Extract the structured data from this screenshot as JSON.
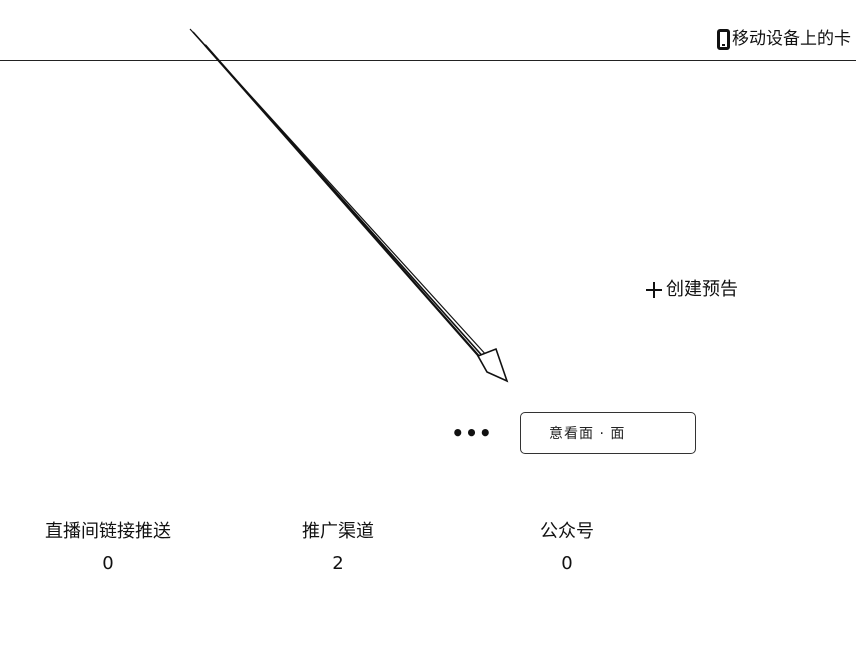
{
  "header": {
    "device_label": "移动设备上的卡"
  },
  "actions": {
    "create_preview_label": "创建预告",
    "more_label": "•••",
    "outlined_button_label": "意看面 · 面"
  },
  "stats": [
    {
      "label": "直播间链接推送",
      "value": "0"
    },
    {
      "label": "推广渠道",
      "value": "2"
    },
    {
      "label": "公众号",
      "value": "0"
    }
  ],
  "icons": {
    "device": "mobile-phone-icon",
    "create": "plus-icon",
    "annotation": "arrow-icon"
  }
}
